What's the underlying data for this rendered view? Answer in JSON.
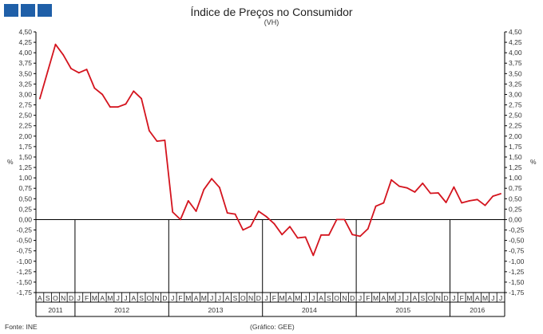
{
  "header": {
    "title": "Índice de Preços no Consumidor",
    "subtitle": "(VH)"
  },
  "footer": {
    "source": "Fonte: INE",
    "credit": "(Gráfico: GEE)"
  },
  "colors": {
    "logo": "#1f5fa8",
    "series": "#d4141e",
    "axis": "#000000",
    "text": "#333333"
  },
  "chart_data": {
    "type": "line",
    "ylabel": "%",
    "ylim": [
      -1.75,
      4.5
    ],
    "ystep": 0.25,
    "y_ticks": [
      "4,50",
      "4,25",
      "4,00",
      "3,75",
      "3,50",
      "3,25",
      "3,00",
      "2,75",
      "2,50",
      "2,25",
      "2,00",
      "1,75",
      "1,50",
      "1,25",
      "1,00",
      "0,75",
      "0,50",
      "0,25",
      "0,00",
      "-0,25",
      "-0,50",
      "-0,75",
      "-1,00",
      "-1,25",
      "-1,50",
      "-1,75"
    ],
    "month_labels": [
      "A",
      "S",
      "O",
      "N",
      "D",
      "J",
      "F",
      "M",
      "A",
      "M",
      "J",
      "J",
      "A",
      "S",
      "O",
      "N",
      "D",
      "J",
      "F",
      "M",
      "A",
      "M",
      "J",
      "J",
      "A",
      "S",
      "O",
      "N",
      "D",
      "J",
      "F",
      "M",
      "A",
      "M",
      "J",
      "J",
      "A",
      "S",
      "O",
      "N",
      "D",
      "J",
      "F",
      "M",
      "A",
      "M",
      "J",
      "J",
      "A",
      "S",
      "O",
      "N",
      "D",
      "J",
      "F",
      "M",
      "A",
      "M",
      "J",
      "J"
    ],
    "year_labels": [
      {
        "label": "2011",
        "start": 0,
        "end": 5
      },
      {
        "label": "2012",
        "start": 5,
        "end": 17
      },
      {
        "label": "2013",
        "start": 17,
        "end": 29
      },
      {
        "label": "2014",
        "start": 29,
        "end": 41
      },
      {
        "label": "2015",
        "start": 41,
        "end": 53
      },
      {
        "label": "2016",
        "start": 53,
        "end": 60
      }
    ],
    "series": [
      {
        "values": [
          2.9,
          3.55,
          4.2,
          3.95,
          3.62,
          3.52,
          3.6,
          3.15,
          3.0,
          2.7,
          2.7,
          2.77,
          3.08,
          2.9,
          2.13,
          1.88,
          1.9,
          0.18,
          0.0,
          0.45,
          0.2,
          0.72,
          0.98,
          0.77,
          0.16,
          0.13,
          -0.25,
          -0.16,
          0.2,
          0.07,
          -0.1,
          -0.36,
          -0.17,
          -0.44,
          -0.42,
          -0.86,
          -0.37,
          -0.37,
          0.0,
          0.0,
          -0.36,
          -0.4,
          -0.22,
          0.32,
          0.4,
          0.95,
          0.8,
          0.76,
          0.66,
          0.87,
          0.63,
          0.64,
          0.41,
          0.78,
          0.4,
          0.45,
          0.48,
          0.34,
          0.56,
          0.62
        ]
      }
    ]
  }
}
